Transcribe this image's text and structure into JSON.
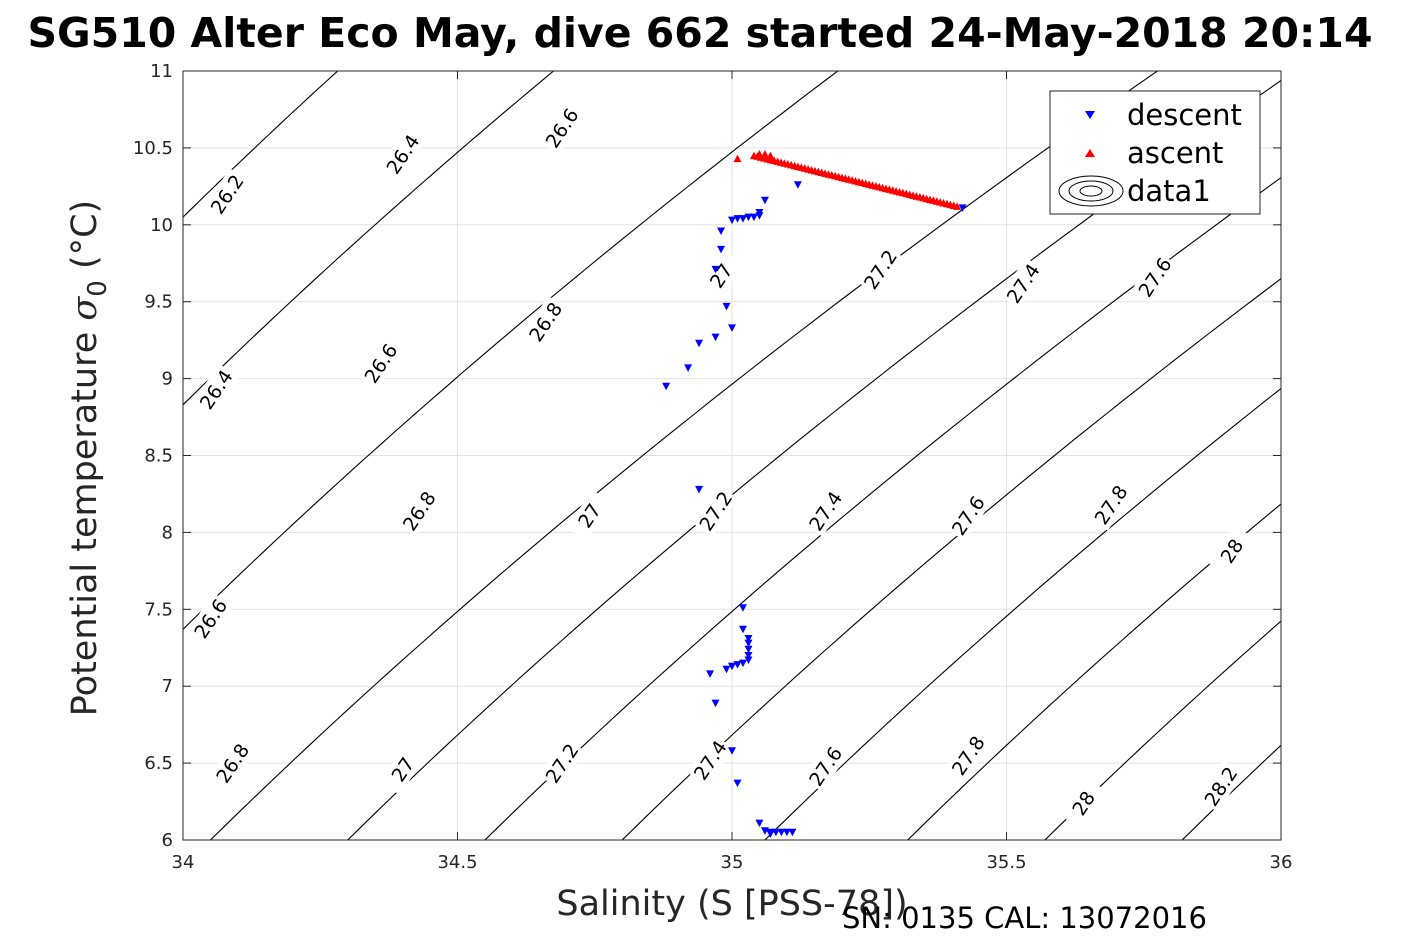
{
  "chart_data": {
    "type": "scatter",
    "title": "SG510 Alter Eco May, dive 662 started 24-May-2018 20:14",
    "xlabel": "Salinity (S [PSS-78])",
    "ylabel_main": "Potential temperature ",
    "ylabel_sigma": "σ",
    "ylabel_sub": "0",
    "ylabel_unit": " (°C)",
    "footer": "SN: 0135  CAL: 13072016",
    "xlim": [
      34,
      36
    ],
    "ylim": [
      6,
      11
    ],
    "xticks": [
      34,
      34.5,
      35,
      35.5,
      36
    ],
    "xtick_labels": [
      "34",
      "34.5",
      "35",
      "35.5",
      "36"
    ],
    "yticks": [
      6,
      6.5,
      7,
      7.5,
      8,
      8.5,
      9,
      9.5,
      10,
      10.5,
      11
    ],
    "ytick_labels": [
      "6",
      "6.5",
      "7",
      "7.5",
      "8",
      "8.5",
      "9",
      "9.5",
      "10",
      "10.5",
      "11"
    ],
    "grid": true,
    "legend_position": "top-right",
    "series": [
      {
        "name": "descent",
        "marker": "triangle-down",
        "color": "#0000ff",
        "points": [
          [
            35.42,
            10.11
          ],
          [
            35.12,
            10.26
          ],
          [
            35.06,
            10.16
          ],
          [
            35.05,
            10.08
          ],
          [
            35.05,
            10.06
          ],
          [
            35.04,
            10.05
          ],
          [
            35.03,
            10.05
          ],
          [
            35.02,
            10.04
          ],
          [
            35.01,
            10.04
          ],
          [
            35.0,
            10.03
          ],
          [
            34.98,
            9.96
          ],
          [
            34.98,
            9.84
          ],
          [
            34.97,
            9.71
          ],
          [
            34.99,
            9.47
          ],
          [
            35.0,
            9.33
          ],
          [
            34.97,
            9.27
          ],
          [
            34.94,
            9.23
          ],
          [
            34.92,
            9.07
          ],
          [
            34.88,
            8.95
          ],
          [
            34.94,
            8.28
          ],
          [
            35.02,
            7.51
          ],
          [
            35.02,
            7.37
          ],
          [
            35.03,
            7.31
          ],
          [
            35.03,
            7.28
          ],
          [
            35.03,
            7.24
          ],
          [
            35.03,
            7.2
          ],
          [
            35.03,
            7.17
          ],
          [
            35.02,
            7.15
          ],
          [
            35.01,
            7.14
          ],
          [
            35.0,
            7.13
          ],
          [
            34.99,
            7.11
          ],
          [
            34.96,
            7.08
          ],
          [
            34.97,
            6.89
          ],
          [
            35.0,
            6.58
          ],
          [
            35.01,
            6.37
          ],
          [
            35.05,
            6.11
          ],
          [
            35.06,
            6.06
          ],
          [
            35.07,
            6.05
          ],
          [
            35.08,
            6.05
          ],
          [
            35.09,
            6.05
          ],
          [
            35.1,
            6.05
          ],
          [
            35.11,
            6.05
          ],
          [
            35.07,
            6.04
          ]
        ]
      },
      {
        "name": "ascent",
        "marker": "triangle-up",
        "color": "#ff0000",
        "points_from": [
          35.04,
          10.45
        ],
        "points_to": [
          35.41,
          10.12
        ],
        "points_count": 60,
        "points": [
          [
            35.01,
            10.43
          ],
          [
            35.05,
            10.46
          ],
          [
            35.06,
            10.46
          ],
          [
            35.07,
            10.45
          ]
        ]
      },
      {
        "name": "data1",
        "marker": "contour",
        "color": "#000000"
      }
    ],
    "contour_lines": [
      {
        "level": 26.2,
        "base_x": 34.0,
        "base_y": 10.05
      },
      {
        "level": 26.4,
        "base_x": 34.0,
        "base_y": 8.83
      },
      {
        "level": 26.6,
        "base_x": 34.0,
        "base_y": 7.37
      },
      {
        "level": 26.8,
        "base_x": 34.05,
        "base_y": 6.0
      },
      {
        "level": 27.0,
        "base_x": 34.3,
        "base_y": 6.0
      },
      {
        "level": 27.2,
        "base_x": 34.55,
        "base_y": 6.0
      },
      {
        "level": 27.4,
        "base_x": 34.8,
        "base_y": 6.0
      },
      {
        "level": 27.6,
        "base_x": 35.06,
        "base_y": 6.0
      },
      {
        "level": 27.8,
        "base_x": 35.32,
        "base_y": 6.0
      },
      {
        "level": 28.0,
        "base_x": 35.57,
        "base_y": 6.0
      },
      {
        "level": 28.2,
        "base_x": 35.82,
        "base_y": 6.0
      }
    ],
    "contour_labels": [
      {
        "text": "26.2",
        "x": 34.08,
        "y": 10.2
      },
      {
        "text": "26.4",
        "x": 34.4,
        "y": 10.46
      },
      {
        "text": "26.6",
        "x": 34.69,
        "y": 10.63
      },
      {
        "text": "26.4",
        "x": 34.06,
        "y": 8.93
      },
      {
        "text": "26.6",
        "x": 34.36,
        "y": 9.1
      },
      {
        "text": "26.8",
        "x": 34.66,
        "y": 9.37
      },
      {
        "text": "27",
        "x": 34.98,
        "y": 9.67
      },
      {
        "text": "27.2",
        "x": 35.27,
        "y": 9.71
      },
      {
        "text": "27.4",
        "x": 35.53,
        "y": 9.62
      },
      {
        "text": "27.6",
        "x": 35.77,
        "y": 9.66
      },
      {
        "text": "26.6",
        "x": 34.05,
        "y": 7.44
      },
      {
        "text": "26.8",
        "x": 34.43,
        "y": 8.14
      },
      {
        "text": "27",
        "x": 34.74,
        "y": 8.11
      },
      {
        "text": "27.2",
        "x": 34.97,
        "y": 8.14
      },
      {
        "text": "27.4",
        "x": 35.17,
        "y": 8.14
      },
      {
        "text": "27.6",
        "x": 35.43,
        "y": 8.11
      },
      {
        "text": "27.8",
        "x": 35.69,
        "y": 8.18
      },
      {
        "text": "28",
        "x": 35.91,
        "y": 7.88
      },
      {
        "text": "26.8",
        "x": 34.09,
        "y": 6.5
      },
      {
        "text": "27",
        "x": 34.4,
        "y": 6.46
      },
      {
        "text": "27.2",
        "x": 34.69,
        "y": 6.5
      },
      {
        "text": "27.4",
        "x": 34.96,
        "y": 6.52
      },
      {
        "text": "27.6",
        "x": 35.17,
        "y": 6.48
      },
      {
        "text": "27.8",
        "x": 35.43,
        "y": 6.55
      },
      {
        "text": "28",
        "x": 35.64,
        "y": 6.24
      },
      {
        "text": "28.2",
        "x": 35.89,
        "y": 6.35
      }
    ]
  }
}
